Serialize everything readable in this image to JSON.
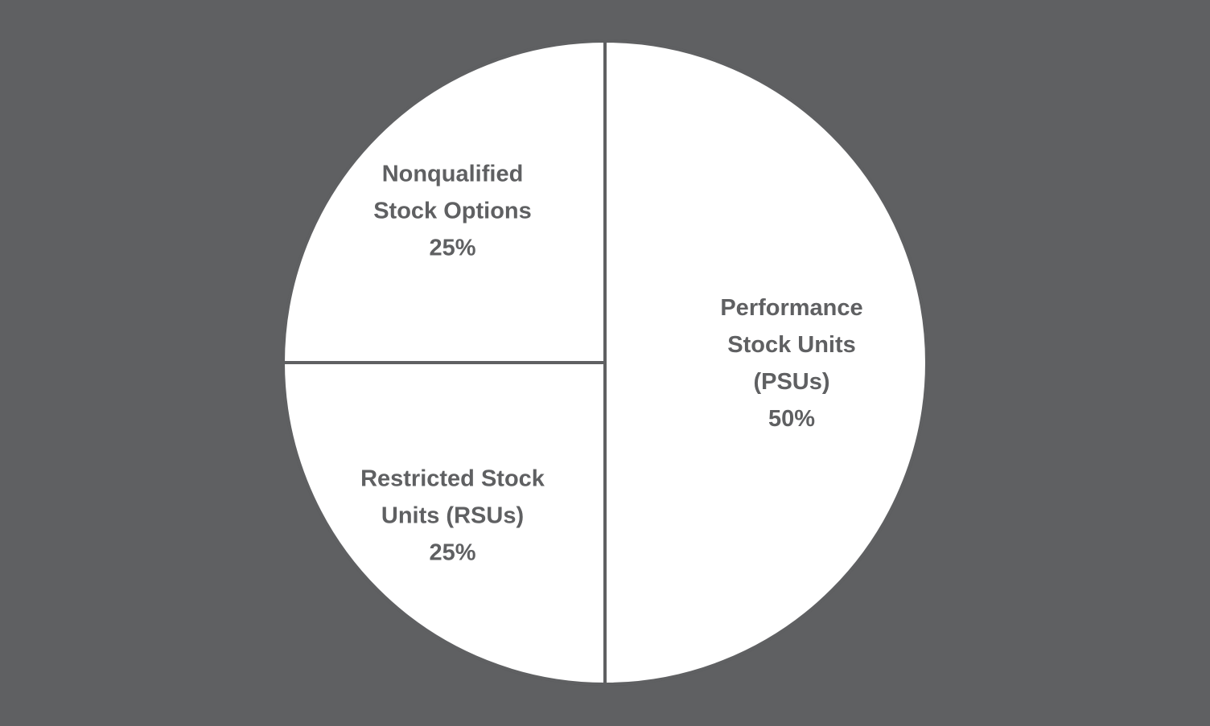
{
  "chart_data": {
    "type": "pie",
    "title": "",
    "slices": [
      {
        "label_lines": [
          "Performance",
          "Stock Units",
          "(PSUs)"
        ],
        "value": 50,
        "value_label": "50%"
      },
      {
        "label_lines": [
          "Restricted Stock",
          "Units (RSUs)"
        ],
        "value": 25,
        "value_label": "25%"
      },
      {
        "label_lines": [
          "Nonqualified",
          "Stock Options"
        ],
        "value": 25,
        "value_label": "25%"
      }
    ],
    "start_angle": "top",
    "direction": "clockwise",
    "legend": "none",
    "colors": {
      "background": "#5f6062",
      "slice_fill": "#ffffff",
      "separator": "#5f6062",
      "text": "#5f6062"
    }
  }
}
